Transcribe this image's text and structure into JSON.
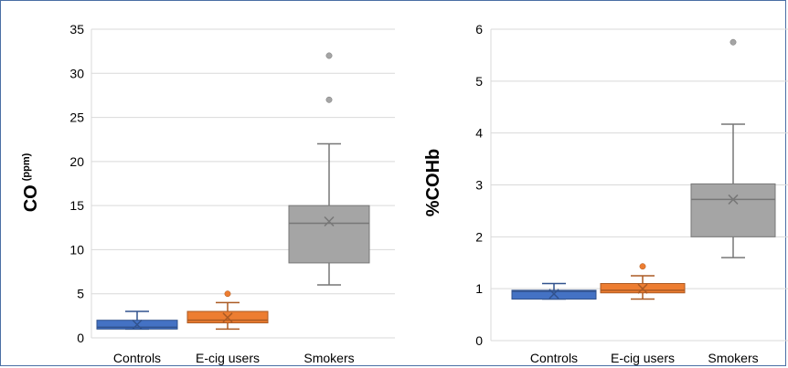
{
  "chart_data": [
    {
      "type": "box",
      "ylabel": "CO",
      "ylabel_unit": "(ppm)",
      "ylim": [
        0,
        35
      ],
      "yticks": [
        0,
        5,
        10,
        15,
        20,
        25,
        30,
        35
      ],
      "grid": true,
      "categories": [
        "Controls",
        "E-cig users",
        "Smokers"
      ],
      "colors": [
        "#4472c4",
        "#ed7d31",
        "#a5a5a5"
      ],
      "series": [
        {
          "name": "Controls",
          "min": 1,
          "q1": 1,
          "median": 1.2,
          "q3": 2,
          "max": 3,
          "mean": 1.5,
          "outliers": []
        },
        {
          "name": "E-cig users",
          "min": 1,
          "q1": 1.7,
          "median": 2,
          "q3": 3,
          "max": 4,
          "mean": 2.3,
          "outliers": [
            5
          ]
        },
        {
          "name": "Smokers",
          "min": 6,
          "q1": 8.5,
          "median": 13,
          "q3": 15,
          "max": 22,
          "mean": 13.2,
          "outliers": [
            27,
            32
          ]
        }
      ]
    },
    {
      "type": "box",
      "ylabel": "%COHb",
      "ylim": [
        0,
        6
      ],
      "yticks": [
        0,
        1,
        2,
        3,
        4,
        5,
        6
      ],
      "grid": true,
      "categories": [
        "Controls",
        "E-cig users",
        "Smokers"
      ],
      "colors": [
        "#4472c4",
        "#ed7d31",
        "#a5a5a5"
      ],
      "series": [
        {
          "name": "Controls",
          "min": 0.8,
          "q1": 0.8,
          "median": 0.95,
          "q3": 0.97,
          "max": 1.1,
          "mean": 0.9,
          "outliers": []
        },
        {
          "name": "E-cig users",
          "min": 0.8,
          "q1": 0.92,
          "median": 0.97,
          "q3": 1.1,
          "max": 1.25,
          "mean": 1.0,
          "outliers": [
            1.43
          ]
        },
        {
          "name": "Smokers",
          "min": 1.6,
          "q1": 2.0,
          "median": 2.72,
          "q3": 3.02,
          "max": 4.17,
          "mean": 2.72,
          "outliers": [
            5.75
          ]
        }
      ]
    }
  ]
}
